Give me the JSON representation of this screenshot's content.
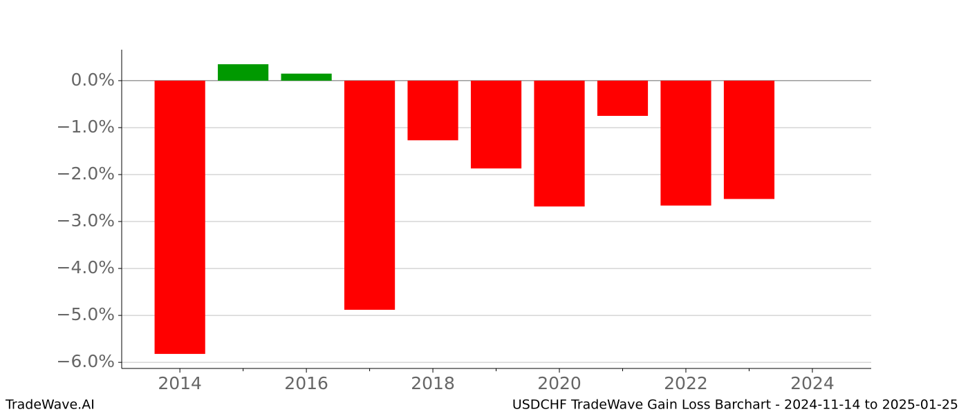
{
  "chart_data": {
    "type": "bar",
    "title": "USDCHF TradeWave Gain Loss Barchart - 2024-11-14 to 2025-01-25",
    "brand": "TradeWave.AI",
    "x": [
      2014,
      2015,
      2016,
      2017,
      2018,
      2019,
      2020,
      2021,
      2022,
      2023
    ],
    "values": [
      -5.82,
      0.35,
      0.15,
      -4.88,
      -1.27,
      -1.87,
      -2.68,
      -0.75,
      -2.66,
      -2.52
    ],
    "positive_color": "#009900",
    "negative_color": "#ff0000",
    "xlim": [
      2013.08,
      2024.93
    ],
    "xticks": [
      2014,
      2016,
      2018,
      2020,
      2022,
      2024
    ],
    "xminorticks": [
      2015,
      2017,
      2019,
      2021,
      2023
    ],
    "ylim": [
      -6.13,
      0.66
    ],
    "yticks": [
      {
        "value": 0,
        "label": "0.0%"
      },
      {
        "value": -1,
        "label": "−1.0%"
      },
      {
        "value": -2,
        "label": "−2.0%"
      },
      {
        "value": -3,
        "label": "−3.0%"
      },
      {
        "value": -4,
        "label": "−4.0%"
      },
      {
        "value": -5,
        "label": "−5.0%"
      },
      {
        "value": -6,
        "label": "−6.0%"
      }
    ],
    "grid": true
  }
}
